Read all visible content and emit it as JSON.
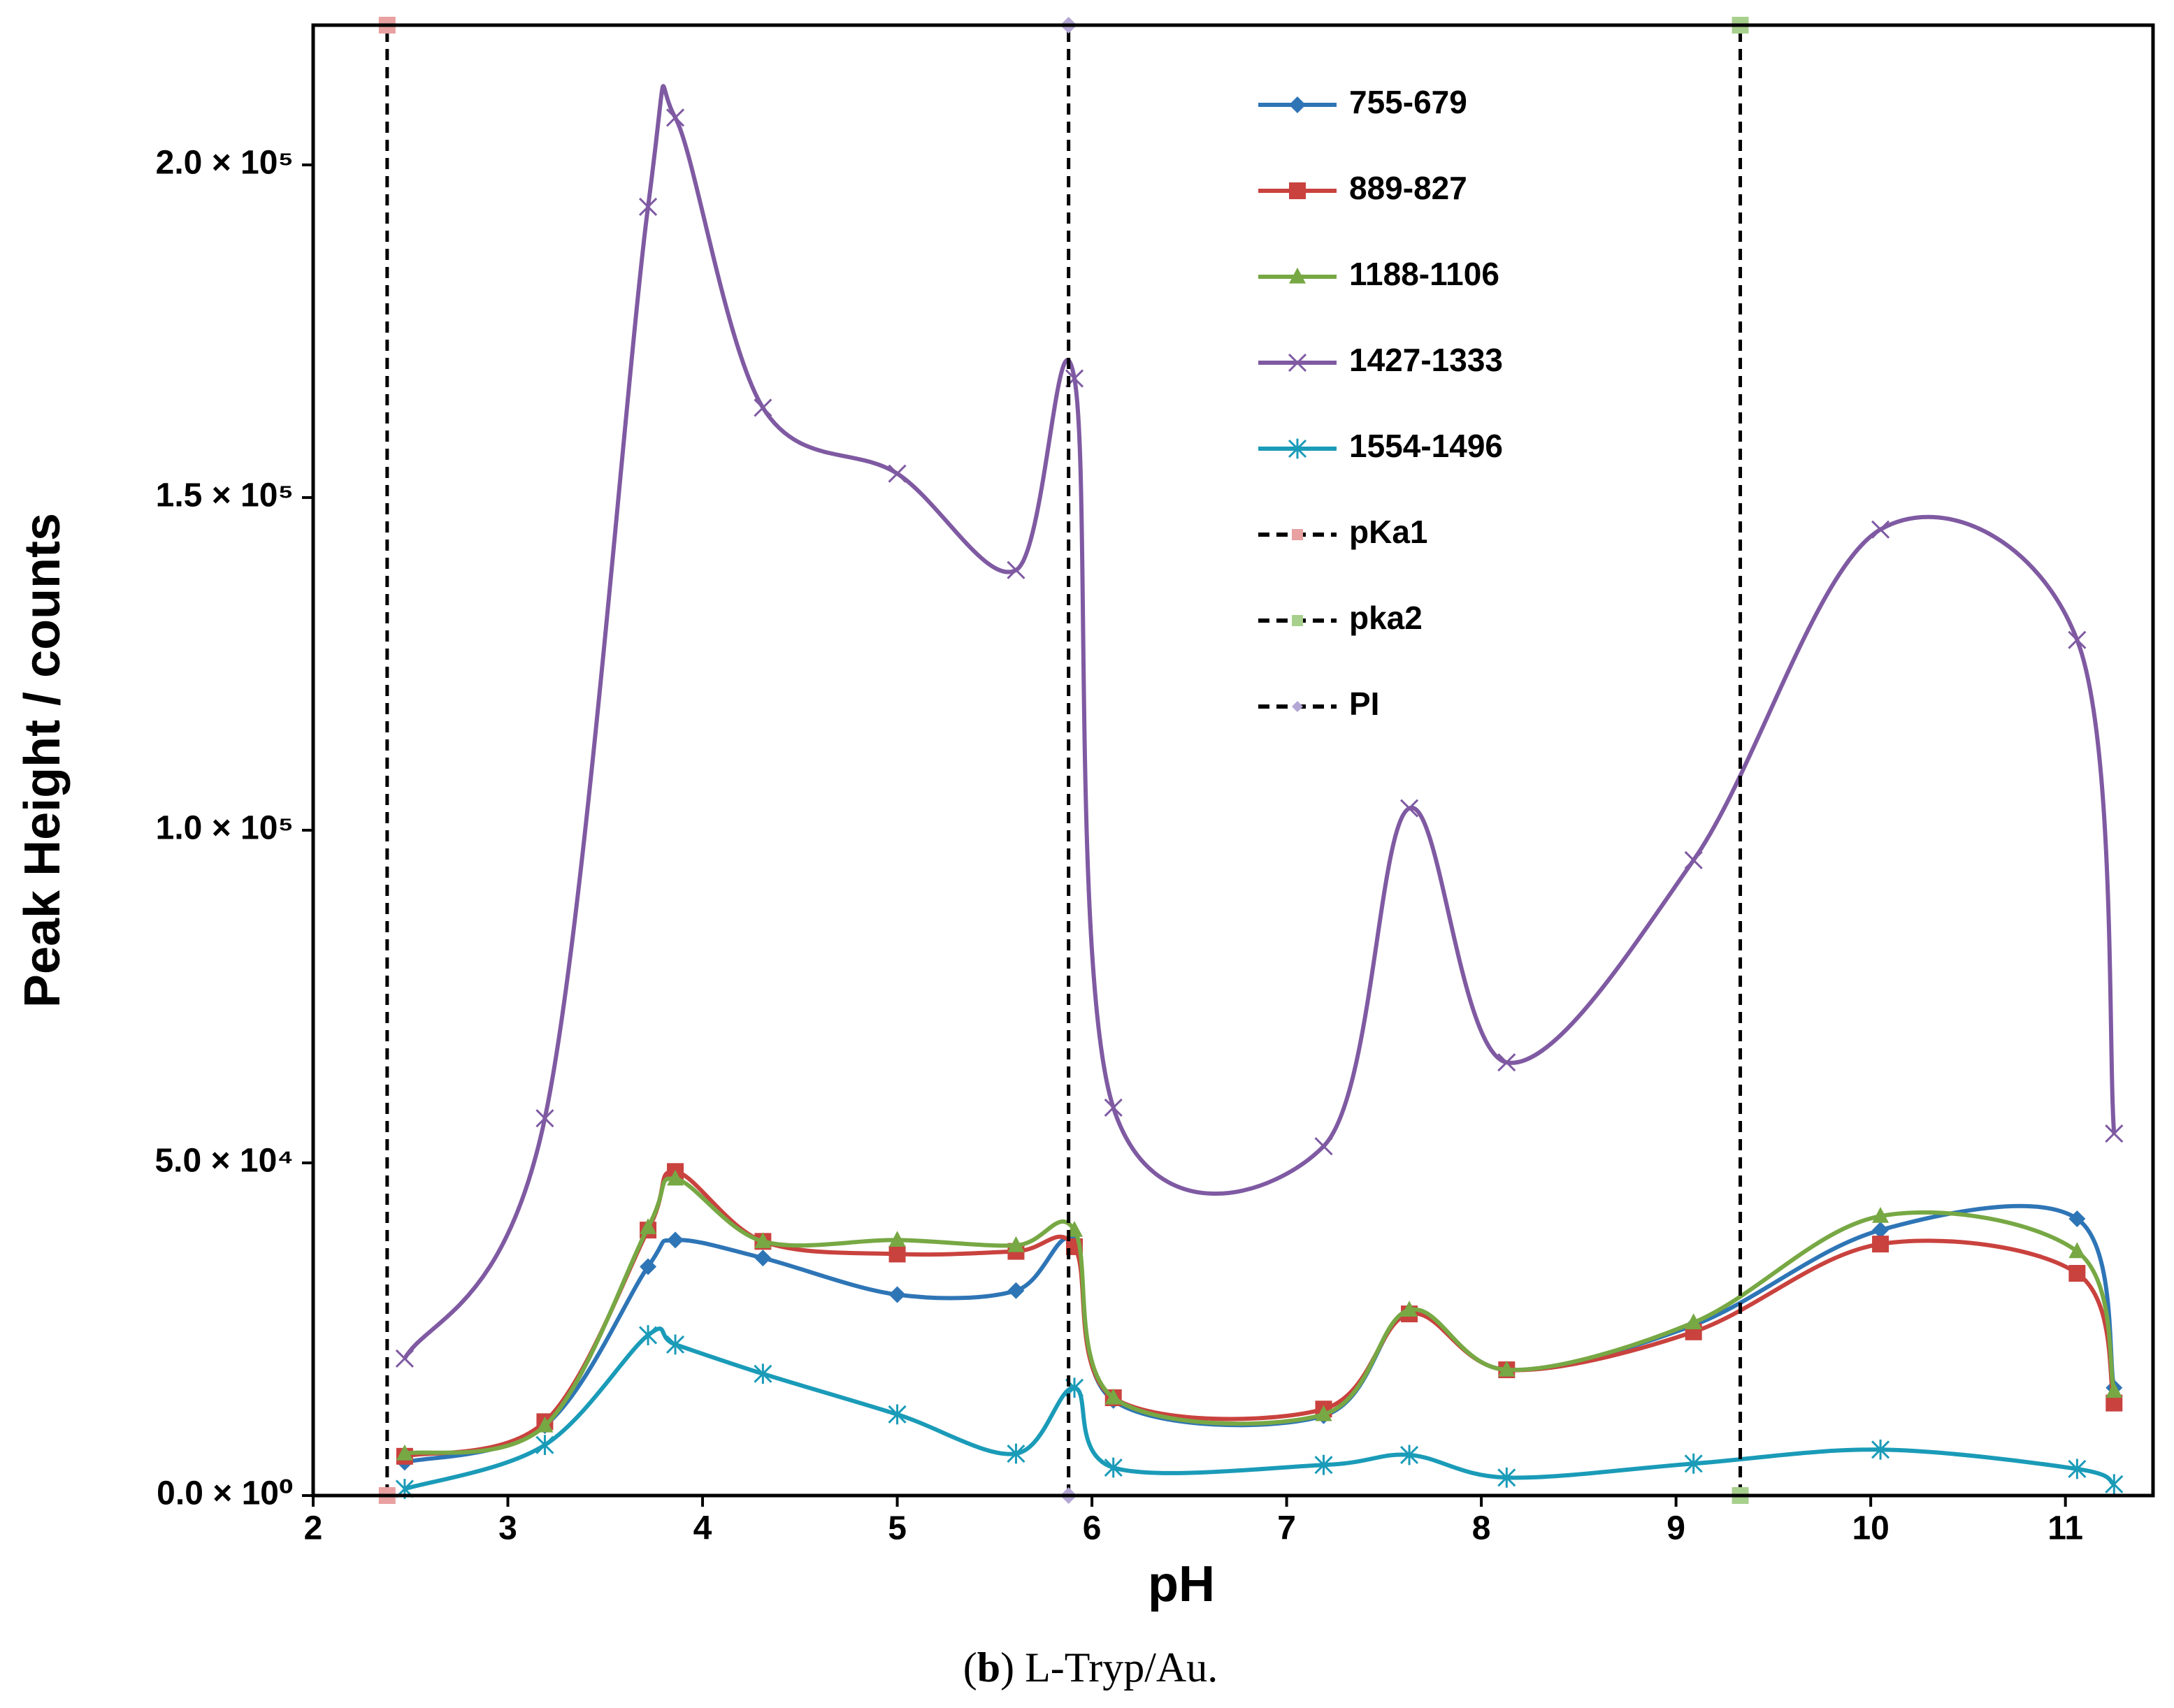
{
  "chart_data": {
    "type": "line",
    "xlabel": "pH",
    "ylabel": "Peak Height / counts",
    "caption": {
      "open": "(",
      "label": "b",
      "text": ") L-Tryp/Au."
    },
    "x": [
      2.47,
      3.19,
      3.72,
      3.86,
      4.31,
      5.0,
      5.61,
      5.91,
      6.11,
      7.19,
      7.63,
      8.13,
      9.09,
      10.05,
      11.06,
      11.25
    ],
    "xlim": [
      2,
      11.45
    ],
    "xticks": [
      2,
      3,
      4,
      5,
      6,
      7,
      8,
      9,
      10,
      11
    ],
    "ylim": [
      0,
      221000
    ],
    "yticks": [
      {
        "value": 0,
        "label": "0.0 × 10⁰"
      },
      {
        "value": 50000,
        "label": "5.0 × 10⁴"
      },
      {
        "value": 100000,
        "label": "1.0 × 10⁵"
      },
      {
        "value": 150000,
        "label": "1.5 × 10⁵"
      },
      {
        "value": 200000,
        "label": "2.0 × 10⁵"
      }
    ],
    "grid": false,
    "series": [
      {
        "name": "755-679",
        "color": "#2e75b6",
        "marker": "diamond",
        "values": [
          5000,
          10500,
          34400,
          38400,
          35700,
          30200,
          30800,
          38200,
          14300,
          12000,
          27700,
          18900,
          25600,
          39900,
          41600,
          16200
        ]
      },
      {
        "name": "889-827",
        "color": "#c9423e",
        "marker": "square",
        "values": [
          5900,
          11100,
          39900,
          48700,
          38200,
          36300,
          36700,
          37400,
          14700,
          13000,
          27300,
          18900,
          24600,
          37800,
          33400,
          13900
        ]
      },
      {
        "name": "1188-1106",
        "color": "#77a844",
        "marker": "triangle",
        "values": [
          6300,
          10500,
          40300,
          47600,
          38200,
          38400,
          37600,
          39900,
          14700,
          12200,
          27900,
          18900,
          26000,
          42000,
          36700,
          15700
        ]
      },
      {
        "name": "1427-1333",
        "color": "#7f5aa2",
        "marker": "x",
        "values": [
          20600,
          56700,
          193700,
          207100,
          163500,
          153600,
          139100,
          167900,
          58300,
          52500,
          103300,
          65100,
          95500,
          145200,
          128600,
          54400
        ]
      },
      {
        "name": "1554-1496",
        "color": "#1a9bb8",
        "marker": "asterisk",
        "values": [
          1000,
          7600,
          24100,
          22700,
          18300,
          12200,
          6300,
          16200,
          4200,
          4600,
          6100,
          2700,
          4800,
          6900,
          4000,
          1700
        ]
      },
      {
        "name": "pKa1",
        "color": "#e8a0a0",
        "line_color": "#000000",
        "dash": true,
        "marker": "square",
        "x": [
          2.38,
          2.38
        ],
        "values": [
          0,
          221000
        ]
      },
      {
        "name": "pka2",
        "color": "#a8d08d",
        "line_color": "#000000",
        "dash": true,
        "marker": "square",
        "x": [
          9.33,
          9.33
        ],
        "values": [
          0,
          221000
        ]
      },
      {
        "name": "PI",
        "color": "#b4a7d6",
        "line_color": "#000000",
        "dash": true,
        "marker": "diamond",
        "x": [
          5.88,
          5.88
        ],
        "values": [
          0,
          221000
        ]
      }
    ]
  }
}
